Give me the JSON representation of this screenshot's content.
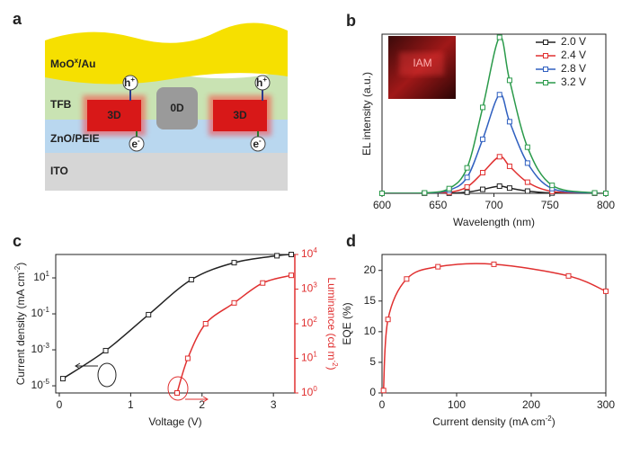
{
  "diagram": {
    "label": "a",
    "layers": [
      {
        "label": [
          "MoO",
          "x",
          "/Au"
        ]
      },
      {
        "label": [
          "TFB"
        ]
      },
      {
        "label": [
          "ZnO/PEIE"
        ]
      },
      {
        "label": [
          "ITO"
        ]
      }
    ],
    "dots": [
      "3D",
      "0D",
      "3D"
    ],
    "carriers": [
      [
        "h",
        "+"
      ],
      [
        "h",
        "+"
      ],
      [
        "e",
        "-"
      ],
      [
        "e",
        "-"
      ]
    ]
  },
  "chart_data": [
    {
      "type": "line",
      "label": "b",
      "xlabel": [
        "Wavelength (nm)"
      ],
      "ylabel": [
        "EL intensity (a.u.)"
      ],
      "annotations": [
        "IAM"
      ],
      "xlim": [
        600,
        800
      ],
      "xticks": [
        600,
        650,
        700,
        750,
        800
      ],
      "ylim": [
        0,
        1
      ],
      "x": [
        600,
        638,
        660,
        676,
        690,
        705,
        714,
        730,
        752,
        790,
        800
      ],
      "series": [
        {
          "name": "2.0 V",
          "color": "#222222",
          "values": [
            0,
            0,
            0.001,
            0.007,
            0.025,
            0.045,
            0.033,
            0.014,
            0.002,
            0,
            0
          ]
        },
        {
          "name": "2.4 V",
          "color": "#e03030",
          "values": [
            0,
            0.001,
            0.007,
            0.04,
            0.13,
            0.23,
            0.17,
            0.07,
            0.012,
            0.001,
            0
          ]
        },
        {
          "name": "2.8 V",
          "color": "#3060c0",
          "values": [
            0,
            0.002,
            0.02,
            0.1,
            0.34,
            0.62,
            0.45,
            0.19,
            0.03,
            0.002,
            0
          ]
        },
        {
          "name": "3.2 V",
          "color": "#2a9a4a",
          "values": [
            0,
            0.003,
            0.03,
            0.16,
            0.54,
            0.98,
            0.71,
            0.29,
            0.05,
            0.003,
            0
          ]
        }
      ],
      "legend": "upper right"
    },
    {
      "type": "line",
      "label": "c",
      "xlabel": [
        "Voltage (V)"
      ],
      "ylabel": [
        "Current density (mA cm",
        "-2",
        ")"
      ],
      "y2label": [
        "Luminance (cd m",
        "-2",
        ")"
      ],
      "xlim": [
        -0.05,
        3.3
      ],
      "xticks": [
        0,
        1,
        2,
        3
      ],
      "ylim": [
        4e-06,
        200
      ],
      "ylog": true,
      "yticks": [
        {
          "value": 1e-05,
          "label": [
            "10",
            "-5"
          ]
        },
        {
          "value": 0.001,
          "label": [
            "10",
            "-3"
          ]
        },
        {
          "value": 0.1,
          "label": [
            "10",
            "-1"
          ]
        },
        {
          "value": 10,
          "label": [
            "10",
            "1"
          ]
        }
      ],
      "y2lim": [
        1,
        10000
      ],
      "y2log": true,
      "y2ticks": [
        {
          "value": 1,
          "label": [
            "10",
            "0"
          ]
        },
        {
          "value": 10,
          "label": [
            "10",
            "1"
          ]
        },
        {
          "value": 100,
          "label": [
            "10",
            "2"
          ]
        },
        {
          "value": 1000,
          "label": [
            "10",
            "3"
          ]
        },
        {
          "value": 10000,
          "label": [
            "10",
            "4"
          ]
        }
      ],
      "y2color": "#e03030",
      "series": [
        {
          "color": "#222222",
          "x": [
            0.05,
            0.65,
            1.25,
            1.85,
            2.45,
            3.05,
            3.25
          ],
          "values": [
            2.5e-05,
            0.0009,
            0.09,
            8,
            70,
            170,
            200
          ]
        },
        {
          "color": "#e03030",
          "axis": "y2",
          "x": [
            1.65,
            1.8,
            2.05,
            2.45,
            2.85,
            3.25
          ],
          "values": [
            1,
            10,
            100,
            400,
            1500,
            2500
          ]
        }
      ]
    },
    {
      "type": "line",
      "label": "d",
      "xlabel": [
        "Current density (mA cm",
        "-2",
        ")"
      ],
      "ylabel": [
        "EQE (%)"
      ],
      "xlim": [
        0,
        300
      ],
      "xticks": [
        0,
        100,
        200,
        300
      ],
      "ylim": [
        0,
        22.6
      ],
      "yticks": [
        0,
        5,
        10,
        15,
        20
      ],
      "series": [
        {
          "color": "#e03030",
          "x": [
            2,
            8,
            33,
            75,
            150,
            250,
            300
          ],
          "values": [
            0.4,
            12,
            18.6,
            20.6,
            21,
            19.1,
            16.6
          ]
        }
      ]
    }
  ]
}
